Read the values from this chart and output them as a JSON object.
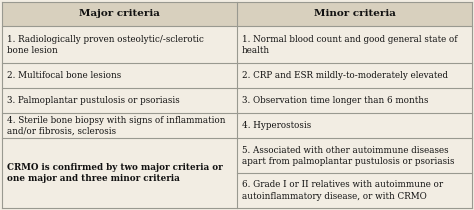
{
  "header_left": "Major criteria",
  "header_right": "Minor criteria",
  "major_criteria": [
    "1. Radiologically proven osteolytic/-sclerotic\nbone lesion",
    "2. Multifocal bone lesions",
    "3. Palmoplantar pustulosis or psoriasis",
    "4. Sterile bone biopsy with signs of inflammation\nand/or fibrosis, sclerosis",
    "CRMO is confirmed by two major criteria or\none major and three minor criteria"
  ],
  "minor_criteria": [
    "1. Normal blood count and good general state of\nhealth",
    "2. CRP and ESR mildly-to-moderately elevated",
    "3. Observation time longer than 6 months",
    "4. Hyperostosis",
    "5. Associated with other autoimmune diseases\napart from palmoplantar pustulosis or psoriasis",
    "6. Grade I or II relatives with autoimmune or\nautoinflammatory disease, or with CRMO"
  ],
  "bg_color": "#f2ede3",
  "header_bg": "#d8d0be",
  "line_color": "#999990",
  "text_color": "#111111",
  "header_fontsize": 7.5,
  "body_fontsize": 6.3
}
